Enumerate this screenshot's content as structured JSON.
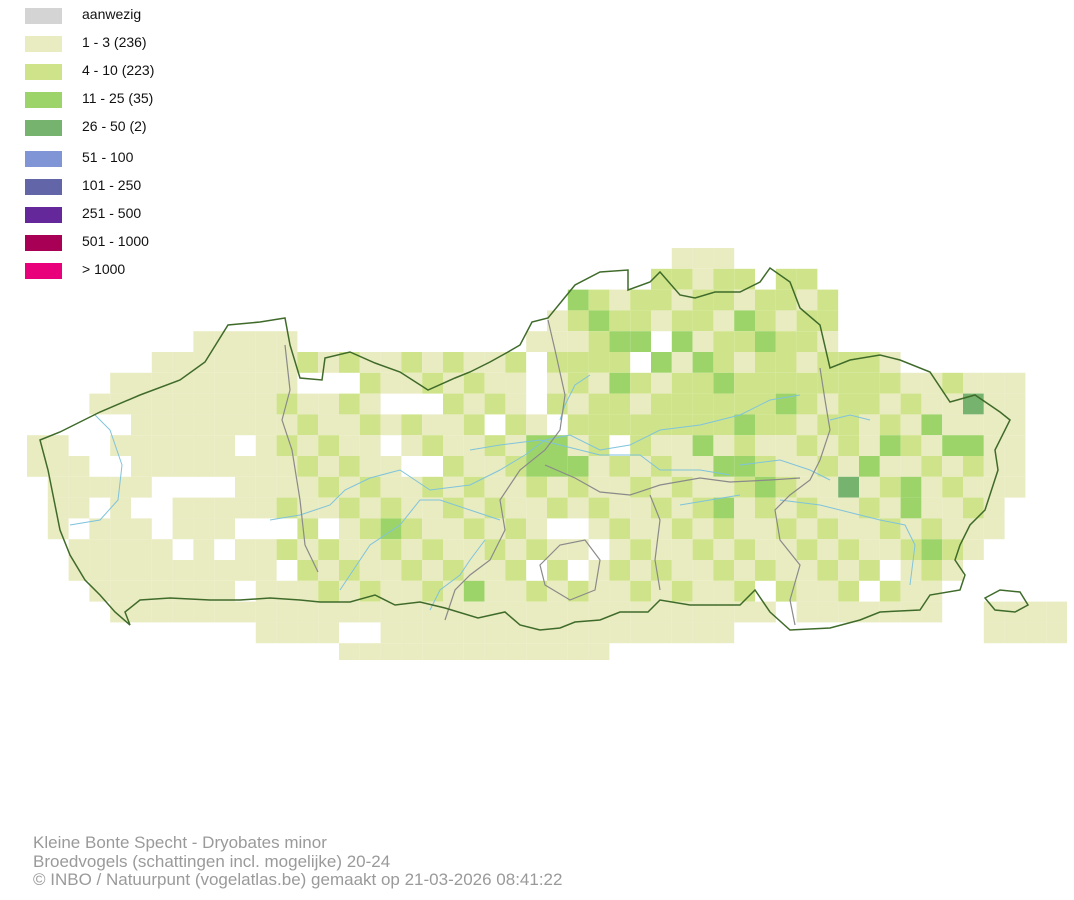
{
  "legend": {
    "items": [
      {
        "label": "aanwezig",
        "color": "#d4d4d4"
      },
      {
        "label": "1 - 3 (236)",
        "color": "#e9ebc1"
      },
      {
        "label": "4 - 10 (223)",
        "color": "#cfe48a"
      },
      {
        "label": "11 - 25 (35)",
        "color": "#9dd46a"
      },
      {
        "label": "26 - 50 (2)",
        "color": "#76b36e"
      },
      {
        "label": "51 - 100",
        "color": "#7f95d6"
      },
      {
        "label": "101 - 250",
        "color": "#6266a8"
      },
      {
        "label": "251 - 500",
        "color": "#65289a"
      },
      {
        "label": "501 - 1000",
        "color": "#a80054"
      },
      {
        "label": "> 1000",
        "color": "#e9007b"
      }
    ]
  },
  "map": {
    "colors": {
      "border": "#3f6b2a",
      "province": "#8a8a8a",
      "river": "#7fc3dc",
      "c1": "#e9ebc1",
      "c2": "#cfe48a",
      "c3": "#9dd46a",
      "c4": "#76b36e"
    }
  },
  "footer": {
    "line1": "Kleine Bonte Specht - Dryobates minor",
    "line2": "Broedvogels (schattingen incl. mogelijke) 20-24",
    "line3": "© INBO / Natuurpunt (vogelatlas.be) gemaakt op 21-03-2026 08:41:22"
  }
}
